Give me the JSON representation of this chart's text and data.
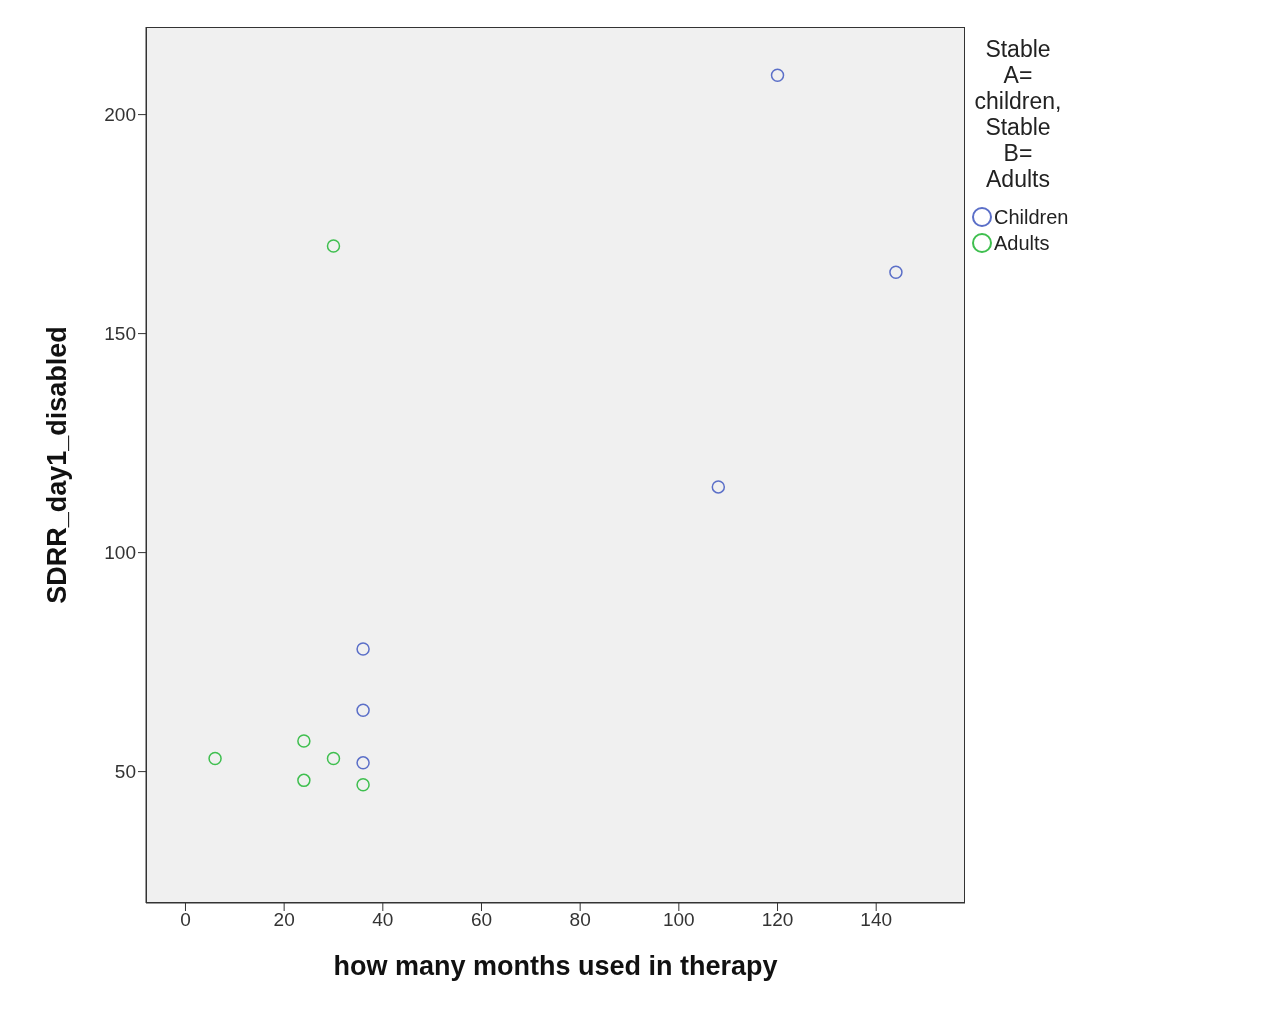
{
  "chart_data": {
    "type": "scatter",
    "xlabel": "how many months used in therapy",
    "ylabel": "SDRR_day1_disabled",
    "legend_title": "Stable A= children, Stable B= Adults",
    "legend": "right",
    "marker": "circle",
    "grid": false,
    "xlim": [
      -8,
      158
    ],
    "xticks": [
      0,
      20,
      40,
      60,
      80,
      100,
      120,
      140
    ],
    "ylim": [
      20,
      220
    ],
    "yticks": [
      50,
      100,
      150,
      200
    ],
    "series": [
      {
        "name": "Children",
        "color": "#5b6fc8",
        "x": [
          120,
          144,
          108,
          36,
          36,
          36
        ],
        "values": [
          209,
          164,
          115,
          78,
          64,
          52
        ]
      },
      {
        "name": "Adults",
        "color": "#3fbf4f",
        "x": [
          30,
          6,
          24,
          30,
          24,
          36
        ],
        "values": [
          170,
          53,
          57,
          53,
          48,
          47
        ]
      }
    ]
  }
}
